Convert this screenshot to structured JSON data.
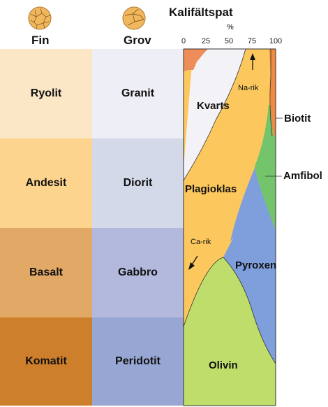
{
  "headers": {
    "fine": "Fin",
    "coarse": "Grov",
    "kfeldspar": "Kalifältspat",
    "percent": "%"
  },
  "scale_ticks": [
    "0",
    "25",
    "50",
    "75",
    "100"
  ],
  "rows": [
    {
      "fine": "Ryolit",
      "coarse": "Granit",
      "fine_color": "#fbe6c6",
      "coarse_color": "#eeeef6"
    },
    {
      "fine": "Andesit",
      "coarse": "Diorit",
      "fine_color": "#fcd48e",
      "coarse_color": "#d4d9ea"
    },
    {
      "fine": "Basalt",
      "coarse": "Gabbro",
      "fine_color": "#e2a865",
      "coarse_color": "#b2b9dd"
    },
    {
      "fine": "Komatit",
      "coarse": "Peridotit",
      "fine_color": "#ce7f2b",
      "coarse_color": "#97a6d2"
    }
  ],
  "minerals": {
    "kvarts": "Kvarts",
    "plagioklas": "Plagioklas",
    "biotit": "Biotit",
    "amfibol": "Amfibol",
    "pyroxen": "Pyroxen",
    "olivin": "Olivin",
    "na_rik": "Na-rik",
    "ca_rik": "Ca-rik"
  },
  "colors": {
    "kfeldspar": "#ee8c5a",
    "quartz": "#f3f3f7",
    "plagioclase": "#fcc85e",
    "biotite": "#ef8a3e",
    "amphibole": "#73c46a",
    "pyroxene": "#7e9edc",
    "olivine": "#bedd6a"
  },
  "icons": [
    "fine-grain-texture-icon",
    "coarse-grain-texture-icon"
  ]
}
